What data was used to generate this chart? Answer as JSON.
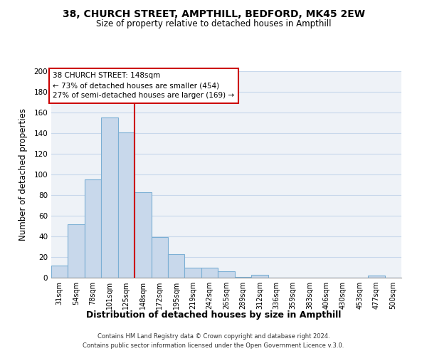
{
  "title1": "38, CHURCH STREET, AMPTHILL, BEDFORD, MK45 2EW",
  "title2": "Size of property relative to detached houses in Ampthill",
  "xlabel": "Distribution of detached houses by size in Ampthill",
  "ylabel": "Number of detached properties",
  "bin_labels": [
    "31sqm",
    "54sqm",
    "78sqm",
    "101sqm",
    "125sqm",
    "148sqm",
    "172sqm",
    "195sqm",
    "219sqm",
    "242sqm",
    "265sqm",
    "289sqm",
    "312sqm",
    "336sqm",
    "359sqm",
    "383sqm",
    "406sqm",
    "430sqm",
    "453sqm",
    "477sqm",
    "500sqm"
  ],
  "bar_heights": [
    12,
    52,
    95,
    155,
    141,
    83,
    39,
    23,
    10,
    10,
    6,
    1,
    3,
    0,
    0,
    0,
    0,
    0,
    0,
    2,
    0
  ],
  "bar_color": "#c8d8eb",
  "bar_edgecolor": "#7bafd4",
  "vline_color": "#cc0000",
  "vline_x_idx": 5,
  "annotation_line1": "38 CHURCH STREET: 148sqm",
  "annotation_line2": "← 73% of detached houses are smaller (454)",
  "annotation_line3": "27% of semi-detached houses are larger (169) →",
  "annotation_box_edgecolor": "#cc0000",
  "ylim": [
    0,
    200
  ],
  "yticks": [
    0,
    20,
    40,
    60,
    80,
    100,
    120,
    140,
    160,
    180,
    200
  ],
  "footer1": "Contains HM Land Registry data © Crown copyright and database right 2024.",
  "footer2": "Contains public sector information licensed under the Open Government Licence v.3.0.",
  "grid_color": "#c8d8eb",
  "background_color": "#eef2f7"
}
